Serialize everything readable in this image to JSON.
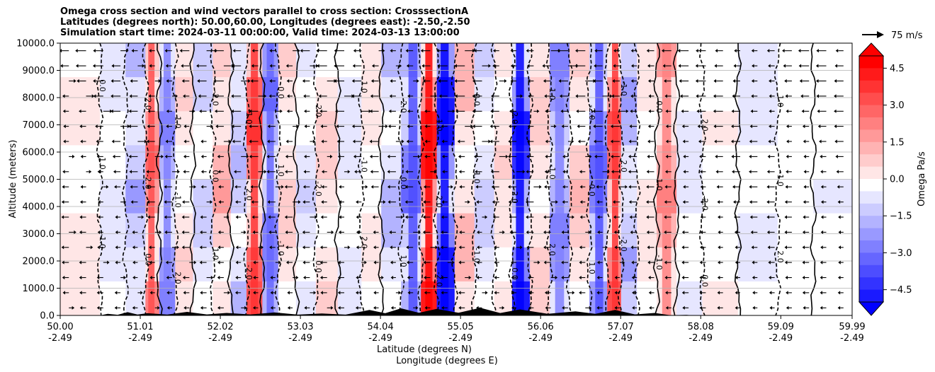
{
  "chart_data": {
    "type": "heatmap",
    "title_lines": [
      "Omega cross section and wind vectors parallel to cross section: CrosssectionA",
      "Latitudes (degrees north): 50.00,60.00, Longitudes (degrees east): -2.50,-2.50",
      "Simulation start time: 2024-03-11 00:00:00, Valid time: 2024-03-13 13:00:00"
    ],
    "xlabel": "Latitude (degrees N)",
    "xlabel2": "Longitude (degrees E)",
    "ylabel": "Altitude (meters)",
    "xlim": [
      50.0,
      59.99
    ],
    "ylim": [
      0,
      10000
    ],
    "x_ticks": [
      {
        "lat": "50.00",
        "lon": "-2.49",
        "v": 50.0
      },
      {
        "lat": "51.01",
        "lon": "-2.49",
        "v": 51.01
      },
      {
        "lat": "52.02",
        "lon": "-2.49",
        "v": 52.02
      },
      {
        "lat": "53.03",
        "lon": "-2.49",
        "v": 53.03
      },
      {
        "lat": "54.04",
        "lon": "-2.49",
        "v": 54.04
      },
      {
        "lat": "55.05",
        "lon": "-2.49",
        "v": 55.05
      },
      {
        "lat": "56.06",
        "lon": "-2.49",
        "v": 56.06
      },
      {
        "lat": "57.07",
        "lon": "-2.49",
        "v": 57.07
      },
      {
        "lat": "58.08",
        "lon": "-2.49",
        "v": 58.08
      },
      {
        "lat": "59.09",
        "lon": "-2.49",
        "v": 59.09
      },
      {
        "lat": "59.99",
        "lon": "-2.49",
        "v": 59.99
      }
    ],
    "y_ticks": [
      "0.0",
      "1000.0",
      "2000.0",
      "3000.0",
      "4000.0",
      "5000.0",
      "6000.0",
      "7000.0",
      "8000.0",
      "9000.0",
      "10000.0"
    ],
    "grid": "horizontal",
    "colorbar": {
      "label": "Omega Pa/s",
      "ticks": [
        "4.5",
        "3.0",
        "1.5",
        "0.0",
        "−1.5",
        "−3.0",
        "−4.5"
      ],
      "tick_values": [
        4.5,
        3.0,
        1.5,
        0.0,
        -1.5,
        -3.0,
        -4.5
      ],
      "range": [
        -5.0,
        5.0
      ],
      "extend": "both",
      "colormap": "bwr",
      "colors": {
        "negative": "#0000ff",
        "zero": "#ffffff",
        "positive": "#ff0000"
      }
    },
    "quiver_key": {
      "label": "75 m/s"
    },
    "contour_label_text": [
      "0.0",
      "1.0",
      "-1.0",
      "2.0",
      "-2.0"
    ],
    "omega_bands": [
      {
        "lat": 50.35,
        "omega": 0.4
      },
      {
        "lat": 50.65,
        "omega": -0.6
      },
      {
        "lat": 51.0,
        "omega": -1.8
      },
      {
        "lat": 51.15,
        "omega": 3.2
      },
      {
        "lat": 51.35,
        "omega": -2.4
      },
      {
        "lat": 51.55,
        "omega": 0.8
      },
      {
        "lat": 51.8,
        "omega": -1.2
      },
      {
        "lat": 52.05,
        "omega": 1.8
      },
      {
        "lat": 52.25,
        "omega": -1.6
      },
      {
        "lat": 52.45,
        "omega": 3.8
      },
      {
        "lat": 52.65,
        "omega": -2.8
      },
      {
        "lat": 52.85,
        "omega": 1.0
      },
      {
        "lat": 53.1,
        "omega": -0.8
      },
      {
        "lat": 53.35,
        "omega": 1.2
      },
      {
        "lat": 53.65,
        "omega": -0.5
      },
      {
        "lat": 53.95,
        "omega": 0.6
      },
      {
        "lat": 54.15,
        "omega": -1.4
      },
      {
        "lat": 54.45,
        "omega": -3.0
      },
      {
        "lat": 54.65,
        "omega": 5.0
      },
      {
        "lat": 54.85,
        "omega": -5.0
      },
      {
        "lat": 55.1,
        "omega": 1.6
      },
      {
        "lat": 55.35,
        "omega": -1.0
      },
      {
        "lat": 55.6,
        "omega": 0.8
      },
      {
        "lat": 55.8,
        "omega": -4.6
      },
      {
        "lat": 56.05,
        "omega": 1.0
      },
      {
        "lat": 56.3,
        "omega": -2.4
      },
      {
        "lat": 56.55,
        "omega": 1.4
      },
      {
        "lat": 56.8,
        "omega": -3.2
      },
      {
        "lat": 57.0,
        "omega": 3.6
      },
      {
        "lat": 57.15,
        "omega": -1.8
      },
      {
        "lat": 57.4,
        "omega": 0.6
      },
      {
        "lat": 57.65,
        "omega": 2.4
      },
      {
        "lat": 57.9,
        "omega": -0.6
      },
      {
        "lat": 58.3,
        "omega": 0.3
      },
      {
        "lat": 58.8,
        "omega": -0.4
      },
      {
        "lat": 59.3,
        "omega": 0.2
      },
      {
        "lat": 59.7,
        "omega": -0.3
      }
    ],
    "terrain": [
      {
        "lat": 50.6,
        "h": 60
      },
      {
        "lat": 50.85,
        "h": 120
      },
      {
        "lat": 51.1,
        "h": 80
      },
      {
        "lat": 51.6,
        "h": 130
      },
      {
        "lat": 52.1,
        "h": 90
      },
      {
        "lat": 52.7,
        "h": 110
      },
      {
        "lat": 53.3,
        "h": 70
      },
      {
        "lat": 53.9,
        "h": 200
      },
      {
        "lat": 54.3,
        "h": 260
      },
      {
        "lat": 54.75,
        "h": 240
      },
      {
        "lat": 55.3,
        "h": 280
      },
      {
        "lat": 55.8,
        "h": 220
      },
      {
        "lat": 56.5,
        "h": 150
      },
      {
        "lat": 57.0,
        "h": 200
      },
      {
        "lat": 57.5,
        "h": 90
      },
      {
        "lat": 57.9,
        "h": 20
      }
    ]
  }
}
